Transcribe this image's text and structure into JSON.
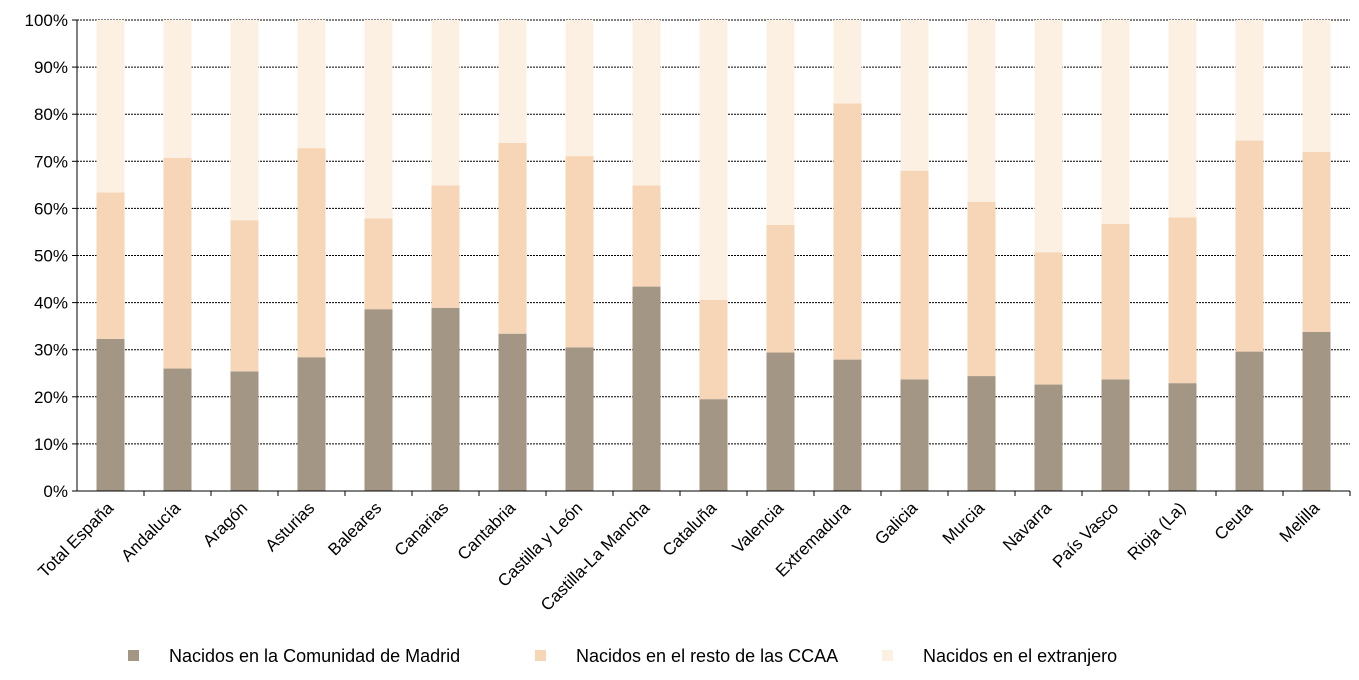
{
  "chart_data": {
    "type": "bar",
    "stacked": true,
    "percent": true,
    "categories": [
      "Total España",
      "Andalucía",
      "Aragón",
      "Asturias",
      "Baleares",
      "Canarias",
      "Cantabria",
      "Castilla y León",
      "Castilla-La Mancha",
      "Cataluña",
      "Valencia",
      "Extremadura",
      "Galicia",
      "Murcia",
      "Navarra",
      "País Vasco",
      "Rioja (La)",
      "Ceuta",
      "Melilla"
    ],
    "series": [
      {
        "name": "Nacidos en la Comunidad de Madrid",
        "color": "#a39685",
        "values": [
          32.3,
          26.0,
          25.4,
          28.4,
          38.6,
          38.9,
          33.4,
          30.5,
          43.4,
          19.5,
          29.4,
          27.9,
          23.7,
          24.4,
          22.6,
          23.7,
          22.9,
          29.6,
          33.8
        ]
      },
      {
        "name": "Nacidos en el resto de las CCAA",
        "color": "#f6d6b6",
        "values": [
          31.1,
          44.7,
          32.1,
          44.4,
          19.3,
          26.0,
          40.5,
          40.6,
          21.5,
          21.1,
          27.1,
          54.4,
          44.3,
          37.0,
          28.1,
          33.0,
          35.2,
          44.8,
          38.2
        ]
      },
      {
        "name": "Nacidos en el extranjero",
        "color": "#fcf0e2",
        "values": [
          36.6,
          29.3,
          42.5,
          27.2,
          42.1,
          35.1,
          26.1,
          28.9,
          35.1,
          59.4,
          43.5,
          17.7,
          32.0,
          38.6,
          49.3,
          43.3,
          41.9,
          25.6,
          28.0
        ]
      }
    ],
    "yticks": [
      "0%",
      "10%",
      "20%",
      "30%",
      "40%",
      "50%",
      "60%",
      "70%",
      "80%",
      "90%",
      "100%"
    ],
    "ylim": [
      0,
      100
    ],
    "grid": true,
    "legend_position": "bottom"
  }
}
